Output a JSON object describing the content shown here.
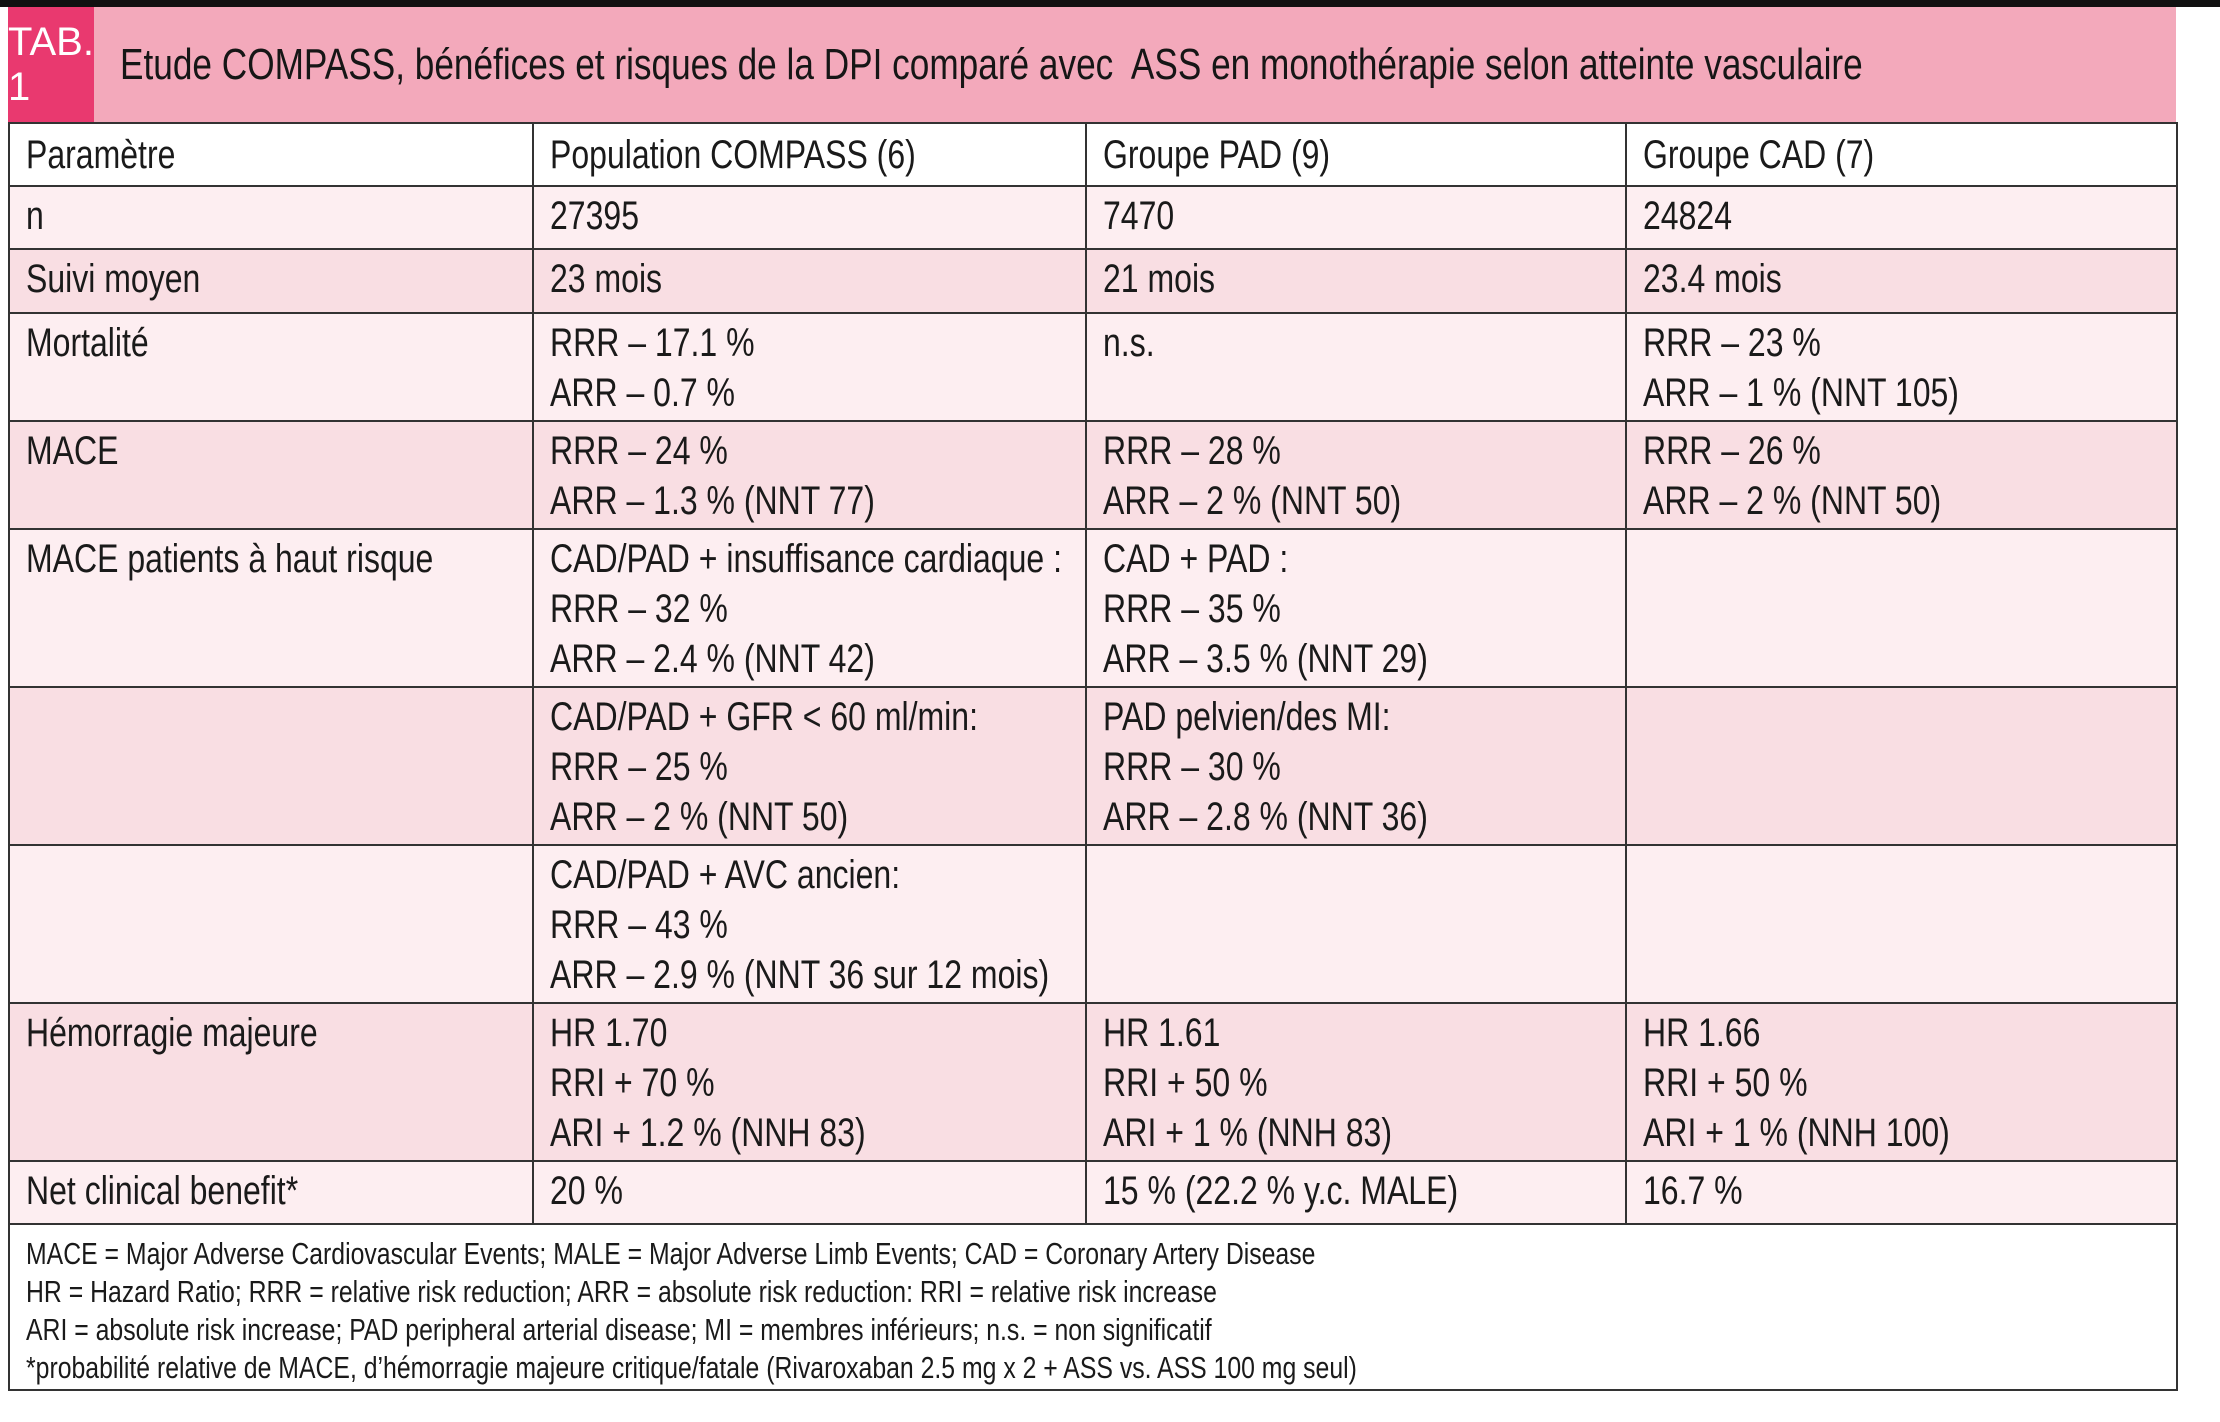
{
  "header": {
    "tab_label": "TAB. 1",
    "title": "Etude COMPASS, bénéfices et risques de la DPI comparé avec  ASS en monothérapie selon atteinte vasculaire"
  },
  "table": {
    "columns": [
      "Paramètre",
      "Population COMPASS (6)",
      "Groupe PAD (9)",
      "Groupe CAD (7)"
    ],
    "rows": [
      {
        "param": "n",
        "compass": "27395",
        "pad": "7470",
        "cad": "24824"
      },
      {
        "param": "Suivi moyen",
        "compass": "23 mois",
        "pad": "21 mois",
        "cad": "23.4 mois"
      },
      {
        "param": "Mortalité",
        "compass": "RRR – 17.1 %\nARR – 0.7 %",
        "pad": "n.s.",
        "cad": "RRR – 23 %\nARR – 1 % (NNT 105)"
      },
      {
        "param": "MACE",
        "compass": "RRR – 24 %\nARR – 1.3 % (NNT 77)",
        "pad": "RRR – 28 %\nARR – 2 % (NNT 50)",
        "cad": "RRR – 26 %\nARR – 2 % (NNT 50)"
      },
      {
        "param": "MACE patients à haut risque",
        "compass": "CAD/PAD + insuffisance cardiaque :\nRRR – 32 %\nARR – 2.4 % (NNT 42)",
        "pad": "CAD + PAD :\nRRR – 35 %\nARR – 3.5 % (NNT 29)",
        "cad": ""
      },
      {
        "param": "",
        "compass": "CAD/PAD + GFR < 60 ml/min:\nRRR – 25 %\nARR – 2 % (NNT 50)",
        "pad": "PAD pelvien/des MI:\nRRR – 30 %\nARR – 2.8 % (NNT 36)",
        "cad": ""
      },
      {
        "param": "",
        "compass": "CAD/PAD + AVC ancien:\nRRR – 43 %\nARR – 2.9 % (NNT 36 sur 12 mois)",
        "pad": "",
        "cad": ""
      },
      {
        "param": "Hémorragie majeure",
        "compass": "HR 1.70\nRRI + 70 %\nARI + 1.2 % (NNH 83)",
        "pad": "HR 1.61\nRRI + 50 %\nARI + 1 % (NNH 83)",
        "cad": "HR 1.66\nRRI + 50 %\nARI + 1 % (NNH 100)"
      },
      {
        "param": "Net clinical benefit*",
        "compass": "20 %",
        "pad": "15 % (22.2 % y.c. MALE)",
        "cad": "16.7 %"
      }
    ]
  },
  "footnotes": [
    "MACE = Major Adverse Cardiovascular Events; MALE = Major Adverse Limb Events; CAD = Coronary Artery Disease",
    "HR = Hazard Ratio; RRR = relative risk reduction; ARR = absolute risk reduction: RRI = relative risk increase",
    "ARI = absolute risk increase; PAD peripheral arterial disease; MI = membres inférieurs; n.s. = non significatif",
    "*probabilité relative de MACE, d’hémorragie majeure critique/fatale (Rivaroxaban 2.5 mg x 2 + ASS vs. ASS 100 mg seul)"
  ],
  "colors": {
    "accent": "#e9396f",
    "band": "#f3a9bb",
    "row_light": "#fdeef1",
    "row_dark": "#f9dee3",
    "border": "#333333",
    "strip": "#111111"
  }
}
